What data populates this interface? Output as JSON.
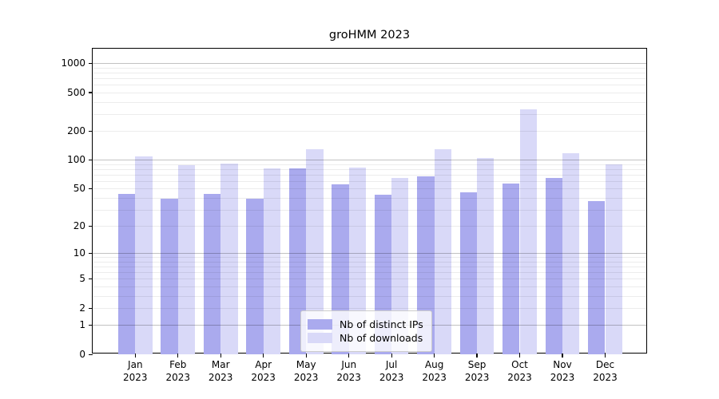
{
  "title": "groHMM 2023",
  "legend": {
    "items": [
      {
        "label": "Nb of distinct IPs",
        "color": "#aaaaee"
      },
      {
        "label": "Nb of downloads",
        "color": "#d9d9f8"
      }
    ],
    "position": "lower center"
  },
  "chart_data": {
    "type": "bar",
    "title": "groHMM 2023",
    "categories": [
      "Jan",
      "Feb",
      "Mar",
      "Apr",
      "May",
      "Jun",
      "Jul",
      "Aug",
      "Sep",
      "Oct",
      "Nov",
      "Dec"
    ],
    "category_year": "2023",
    "series": [
      {
        "name": "Nb of distinct IPs",
        "color": "#aaaaee",
        "values": [
          44,
          39,
          44,
          39,
          81,
          56,
          43,
          68,
          46,
          57,
          65,
          37
        ]
      },
      {
        "name": "Nb of downloads",
        "color": "#d9d9f8",
        "values": [
          109,
          88,
          91,
          82,
          130,
          83,
          65,
          129,
          105,
          335,
          117,
          90
        ]
      }
    ],
    "xlabel": "",
    "ylabel": "",
    "yscale": "log10(1+value)",
    "yticks": [
      0,
      1,
      2,
      5,
      10,
      20,
      50,
      100,
      200,
      500,
      1000
    ],
    "ylim": [
      0,
      1415
    ],
    "grid": {
      "major_lines": [
        1,
        10,
        100,
        1000
      ],
      "minor_lines": [
        2,
        3,
        4,
        5,
        6,
        7,
        8,
        9,
        20,
        30,
        40,
        50,
        60,
        70,
        80,
        90,
        200,
        300,
        400,
        500,
        600,
        700,
        800,
        900
      ]
    },
    "legend_position": "lower center"
  }
}
